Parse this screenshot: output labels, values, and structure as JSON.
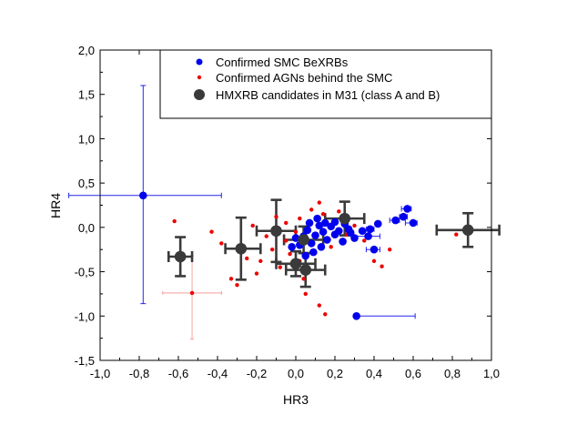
{
  "chart_data": {
    "type": "scatter",
    "title": "",
    "xlabel": "HR3",
    "ylabel": "HR4",
    "xlim": [
      -1.0,
      1.0
    ],
    "ylim": [
      -1.5,
      2.0
    ],
    "xticks": [
      -1.0,
      -0.8,
      -0.6,
      -0.4,
      -0.2,
      0.0,
      0.2,
      0.4,
      0.6,
      0.8,
      1.0
    ],
    "yticks": [
      -1.5,
      -1.0,
      -0.5,
      0.0,
      0.5,
      1.0,
      1.5,
      2.0
    ],
    "xtick_labels": [
      "-1,0",
      "-0,8",
      "-0,6",
      "-0,4",
      "-0,2",
      "0,0",
      "0,2",
      "0,4",
      "0,6",
      "0,8",
      "1,0"
    ],
    "ytick_labels": [
      "-1,5",
      "-1,0",
      "-0,5",
      "0,0",
      "0,5",
      "1,0",
      "1,5",
      "2,0"
    ],
    "grid": false,
    "legend_position": "top",
    "series": [
      {
        "name": "Confirmed SMC BeXRBs",
        "color": "#0000ee",
        "marker": "circle",
        "points": [
          {
            "x": -0.78,
            "y": 0.36,
            "xerr": [
              0.38,
              0.4
            ],
            "yerr": [
              1.22,
              1.24
            ]
          },
          {
            "x": 0.31,
            "y": -1.0,
            "xerr": [
              0.0,
              0.3
            ]
          },
          {
            "x": 0.57,
            "y": 0.21,
            "xerr": [
              0.03,
              0.02
            ]
          },
          {
            "x": 0.55,
            "y": 0.12,
            "xerr": [
              0.02,
              0.02
            ]
          },
          {
            "x": 0.51,
            "y": 0.08,
            "xerr": [
              0.03,
              0.02
            ]
          },
          {
            "x": 0.6,
            "y": 0.05,
            "xerr": [
              0.04,
              0.02
            ]
          },
          {
            "x": 0.42,
            "y": 0.04
          },
          {
            "x": 0.38,
            "y": -0.02,
            "xerr": [
              0.02,
              0.02
            ]
          },
          {
            "x": 0.37,
            "y": -0.1,
            "xerr": [
              0.08,
              0.06
            ]
          },
          {
            "x": 0.4,
            "y": -0.25,
            "xerr": [
              0.04,
              0.03
            ]
          },
          {
            "x": 0.3,
            "y": -0.12
          },
          {
            "x": 0.27,
            "y": -0.02
          },
          {
            "x": 0.25,
            "y": 0.04
          },
          {
            "x": 0.22,
            "y": -0.04
          },
          {
            "x": 0.2,
            "y": -0.08
          },
          {
            "x": 0.18,
            "y": 0.01
          },
          {
            "x": 0.16,
            "y": -0.14
          },
          {
            "x": 0.14,
            "y": -0.05
          },
          {
            "x": 0.12,
            "y": 0.02
          },
          {
            "x": 0.1,
            "y": -0.09
          },
          {
            "x": 0.08,
            "y": -0.18
          },
          {
            "x": 0.06,
            "y": -0.03
          },
          {
            "x": 0.04,
            "y": -0.1
          },
          {
            "x": 0.02,
            "y": -0.2
          },
          {
            "x": 0.0,
            "y": -0.12
          },
          {
            "x": -0.02,
            "y": -0.22
          },
          {
            "x": 0.11,
            "y": 0.1
          },
          {
            "x": 0.15,
            "y": 0.05
          },
          {
            "x": 0.2,
            "y": 0.06
          },
          {
            "x": 0.24,
            "y": -0.16
          },
          {
            "x": 0.28,
            "y": -0.06
          },
          {
            "x": 0.09,
            "y": -0.28
          },
          {
            "x": 0.13,
            "y": -0.22
          },
          {
            "x": 0.05,
            "y": -0.32
          },
          {
            "x": 0.34,
            "y": -0.04
          },
          {
            "x": 0.07,
            "y": 0.05
          }
        ]
      },
      {
        "name": "Confirmed AGNs behind the SMC",
        "color": "#ee0000",
        "marker": "small-circle",
        "points": [
          {
            "x": -0.53,
            "y": -0.74,
            "xerr": [
              0.15,
              0.15
            ],
            "yerr": [
              0.52,
              0.42
            ]
          },
          {
            "x": -0.62,
            "y": 0.07
          },
          {
            "x": -0.43,
            "y": -0.05
          },
          {
            "x": -0.38,
            "y": -0.18
          },
          {
            "x": -0.33,
            "y": -0.58
          },
          {
            "x": -0.3,
            "y": -0.65
          },
          {
            "x": -0.25,
            "y": -0.35
          },
          {
            "x": -0.22,
            "y": 0.02
          },
          {
            "x": -0.2,
            "y": -0.52
          },
          {
            "x": -0.18,
            "y": -0.38
          },
          {
            "x": -0.15,
            "y": -0.1
          },
          {
            "x": -0.12,
            "y": -0.25
          },
          {
            "x": -0.1,
            "y": 0.12
          },
          {
            "x": -0.08,
            "y": -0.45
          },
          {
            "x": -0.05,
            "y": -0.15
          },
          {
            "x": -0.03,
            "y": -0.3
          },
          {
            "x": 0.0,
            "y": -0.05
          },
          {
            "x": 0.02,
            "y": -0.38
          },
          {
            "x": 0.04,
            "y": -0.58
          },
          {
            "x": 0.05,
            "y": -0.75
          },
          {
            "x": 0.12,
            "y": 0.28
          },
          {
            "x": 0.14,
            "y": 0.15
          },
          {
            "x": 0.16,
            "y": 0.05
          },
          {
            "x": 0.12,
            "y": -0.88
          },
          {
            "x": 0.15,
            "y": -0.98
          },
          {
            "x": 0.18,
            "y": -0.22
          },
          {
            "x": 0.22,
            "y": 0.18
          },
          {
            "x": 0.26,
            "y": -0.08
          },
          {
            "x": 0.3,
            "y": 0.02
          },
          {
            "x": 0.35,
            "y": -0.15
          },
          {
            "x": 0.4,
            "y": -0.38
          },
          {
            "x": 0.44,
            "y": -0.44
          },
          {
            "x": 0.48,
            "y": -0.25
          },
          {
            "x": 0.82,
            "y": -0.08
          },
          {
            "x": 0.08,
            "y": 0.2
          },
          {
            "x": 0.02,
            "y": 0.1
          },
          {
            "x": -0.05,
            "y": 0.05
          }
        ]
      },
      {
        "name": "HMXRB candidates in M31 (class A and B)",
        "color": "#3a3a3a",
        "marker": "big-circle",
        "points": [
          {
            "x": -0.59,
            "y": -0.33,
            "xerr": [
              0.06,
              0.06
            ],
            "yerr": [
              0.22,
              0.22
            ]
          },
          {
            "x": -0.28,
            "y": -0.24,
            "xerr": [
              0.08,
              0.1
            ],
            "yerr": [
              0.35,
              0.35
            ]
          },
          {
            "x": -0.1,
            "y": -0.04,
            "xerr": [
              0.1,
              0.1
            ],
            "yerr": [
              0.35,
              0.35
            ]
          },
          {
            "x": 0.0,
            "y": -0.41,
            "xerr": [
              0.1,
              0.1
            ],
            "yerr": [
              0.14,
              0.14
            ]
          },
          {
            "x": 0.04,
            "y": -0.14,
            "xerr": [
              0.1,
              0.1
            ],
            "yerr": [
              0.15,
              0.15
            ]
          },
          {
            "x": 0.05,
            "y": -0.48,
            "xerr": [
              0.1,
              0.1
            ],
            "yerr": [
              0.19,
              0.19
            ]
          },
          {
            "x": 0.25,
            "y": 0.1,
            "xerr": [
              0.1,
              0.1
            ],
            "yerr": [
              0.19,
              0.19
            ]
          },
          {
            "x": 0.88,
            "y": -0.03,
            "xerr": [
              0.16,
              0.16
            ],
            "yerr": [
              0.19,
              0.19
            ]
          }
        ]
      }
    ]
  }
}
